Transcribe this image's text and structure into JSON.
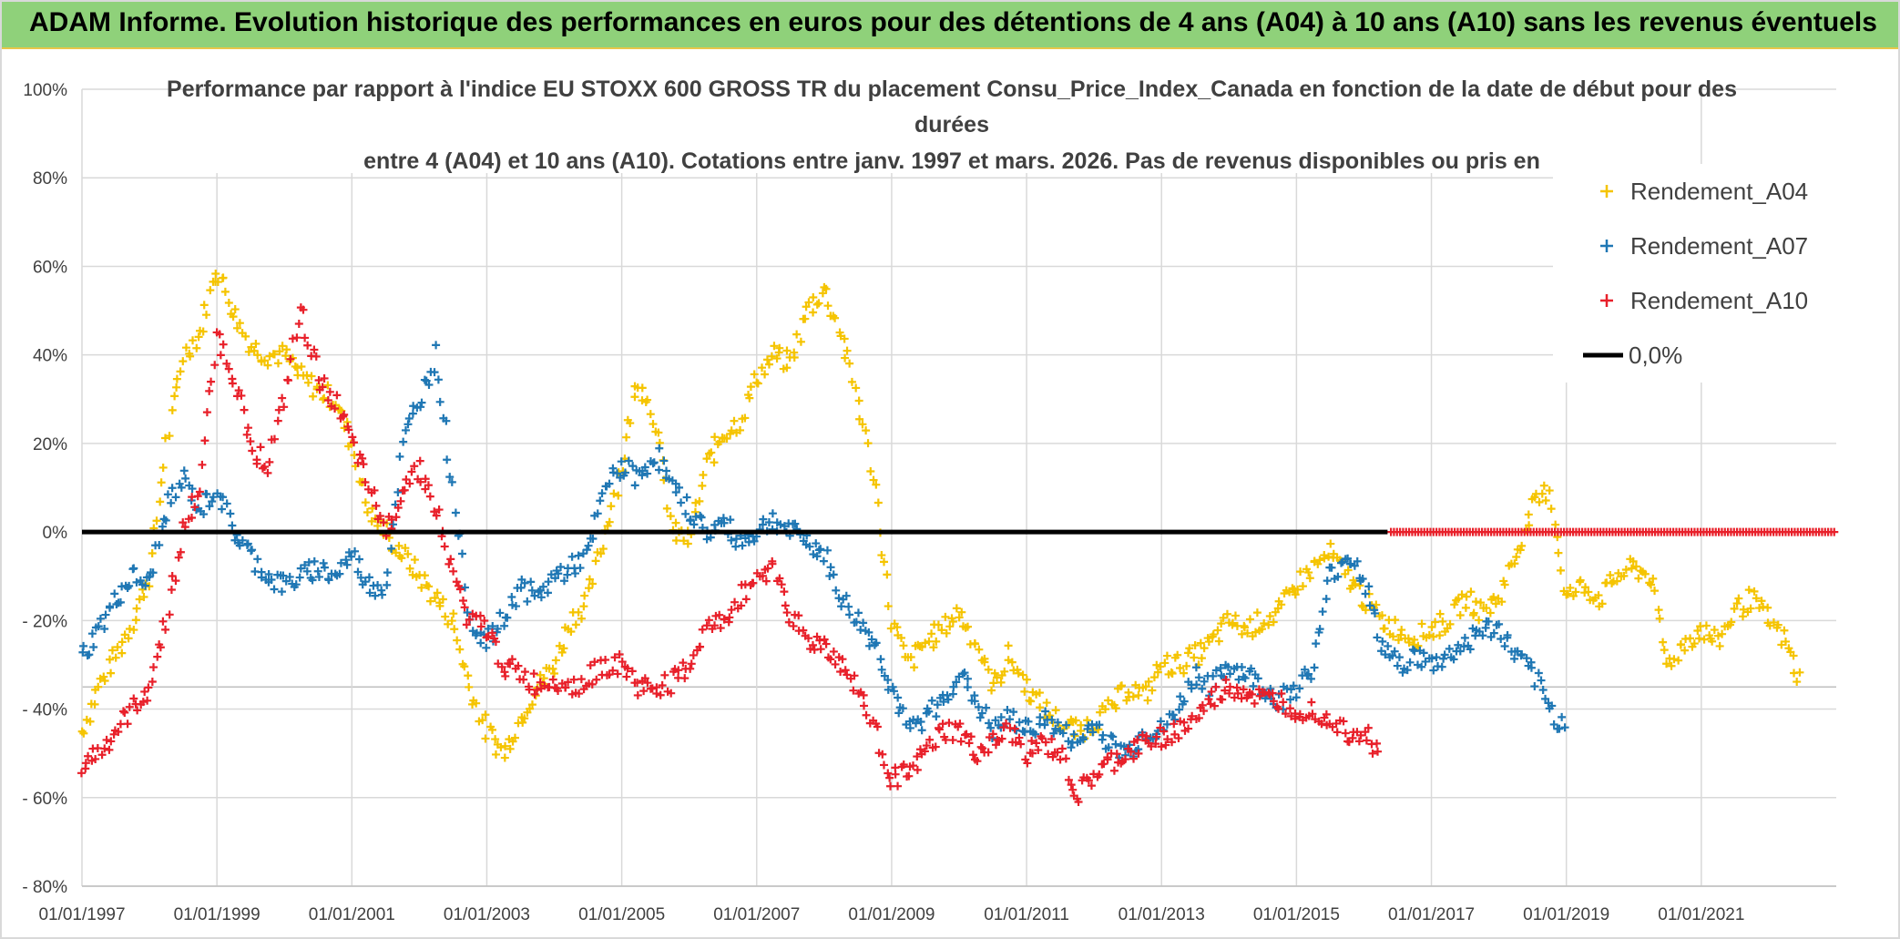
{
  "banner": {
    "title": "ADAM Informe. Evolution historique des performances en euros pour des détentions de 4 ans (A04) à 10 ans (A10) sans les revenus éventuels"
  },
  "chart_data": {
    "type": "scatter",
    "title_lines": [
      "Performance par rapport à l'indice EU STOXX 600 GROSS TR  du placement Consu_Price_Index_Canada en fonction de la date de début pour des",
      "durées",
      "entre 4 (A04) et 10 ans (A10). Cotations entre janv. 1997 et mars. 2026. Pas de revenus disponibles ou pris en"
    ],
    "x_tick_labels": [
      "01/01/1997",
      "01/01/1999",
      "01/01/2001",
      "01/01/2003",
      "01/01/2005",
      "01/01/2007",
      "01/01/2009",
      "01/01/2011",
      "01/01/2013",
      "01/01/2015",
      "01/01/2017",
      "01/01/2019",
      "01/01/2021"
    ],
    "y_tick_labels": [
      "100%",
      "80%",
      "60%",
      "40%",
      "20%",
      "0%",
      "- 20%",
      "- 40%",
      "- 60%",
      "- 80%"
    ],
    "xlim": [
      1997.0,
      2023.0
    ],
    "ylim": [
      -80,
      100
    ],
    "grid": true,
    "legend_position": "top-right",
    "reference_line": {
      "name": "0,0%",
      "value": 0,
      "color": "#000000"
    },
    "series": [
      {
        "name": "Rendement_A04",
        "color": "#f5c400",
        "x": [
          1997.0,
          1997.25,
          1997.5,
          1997.75,
          1998.0,
          1998.25,
          1998.5,
          1998.75,
          1999.0,
          1999.25,
          1999.5,
          1999.75,
          2000.0,
          2000.25,
          2000.5,
          2000.75,
          2001.0,
          2001.25,
          2001.5,
          2001.75,
          2002.0,
          2002.25,
          2002.5,
          2002.75,
          2003.0,
          2003.25,
          2003.5,
          2003.75,
          2004.0,
          2004.25,
          2004.5,
          2004.75,
          2005.0,
          2005.25,
          2005.5,
          2005.75,
          2006.0,
          2006.25,
          2006.5,
          2006.75,
          2007.0,
          2007.25,
          2007.5,
          2007.75,
          2008.0,
          2008.25,
          2008.5,
          2008.75,
          2009.0,
          2009.25,
          2009.5,
          2009.75,
          2010.0,
          2010.25,
          2010.5,
          2010.75,
          2011.0,
          2011.25,
          2011.5,
          2011.75,
          2012.0,
          2012.25,
          2012.5,
          2012.75,
          2013.0,
          2013.25,
          2013.5,
          2013.75,
          2014.0,
          2014.25,
          2014.5,
          2014.75,
          2015.0,
          2015.25,
          2015.5,
          2015.75,
          2016.0,
          2016.25,
          2016.5,
          2016.75,
          2017.0,
          2017.25,
          2017.5,
          2017.75,
          2018.0,
          2018.25,
          2018.5,
          2018.75,
          2019.0,
          2019.25,
          2019.5,
          2019.75,
          2020.0,
          2020.25,
          2020.5,
          2020.75,
          2021.0,
          2021.25,
          2021.5,
          2021.75,
          2022.0,
          2022.25,
          2022.5
        ],
        "y": [
          -45,
          -35,
          -28,
          -20,
          -10,
          20,
          40,
          45,
          60,
          50,
          42,
          40,
          40,
          35,
          32,
          30,
          20,
          5,
          0,
          -5,
          -10,
          -15,
          -20,
          -35,
          -45,
          -50,
          -42,
          -35,
          -30,
          -20,
          -15,
          0,
          15,
          35,
          25,
          0,
          -2,
          15,
          22,
          25,
          35,
          40,
          38,
          50,
          55,
          45,
          30,
          10,
          -20,
          -30,
          -25,
          -22,
          -18,
          -25,
          -35,
          -28,
          -35,
          -40,
          -43,
          -45,
          -43,
          -40,
          -35,
          -37,
          -30,
          -30,
          -28,
          -25,
          -20,
          -22,
          -20,
          -18,
          -12,
          -8,
          -5,
          -10,
          -15,
          -20,
          -22,
          -24,
          -22,
          -20,
          -15,
          -18,
          -15,
          -5,
          5,
          10,
          -15,
          -12,
          -15,
          -10,
          -8,
          -10,
          -30,
          -25,
          -22,
          -25,
          -18,
          -15,
          -20,
          -25,
          -35
        ]
      },
      {
        "name": "Rendement_A07",
        "color": "#1f77b4",
        "x": [
          1997.0,
          1997.25,
          1997.5,
          1997.75,
          1998.0,
          1998.25,
          1998.5,
          1998.75,
          1999.0,
          1999.25,
          1999.5,
          1999.75,
          2000.0,
          2000.25,
          2000.5,
          2000.75,
          2001.0,
          2001.25,
          2001.5,
          2001.75,
          2002.0,
          2002.25,
          2002.5,
          2002.75,
          2003.0,
          2003.25,
          2003.5,
          2003.75,
          2004.0,
          2004.25,
          2004.5,
          2004.75,
          2005.0,
          2005.25,
          2005.5,
          2005.75,
          2006.0,
          2006.25,
          2006.5,
          2006.75,
          2007.0,
          2007.25,
          2007.5,
          2007.75,
          2008.0,
          2008.25,
          2008.5,
          2008.75,
          2009.0,
          2009.25,
          2009.5,
          2009.75,
          2010.0,
          2010.25,
          2010.5,
          2010.75,
          2011.0,
          2011.25,
          2011.5,
          2011.75,
          2012.0,
          2012.25,
          2012.5,
          2012.75,
          2013.0,
          2013.25,
          2013.5,
          2013.75,
          2014.0,
          2014.25,
          2014.5,
          2014.75,
          2015.0,
          2015.25,
          2015.5,
          2015.75,
          2016.0,
          2016.25,
          2016.5,
          2016.75,
          2017.0,
          2017.25,
          2017.5,
          2017.75,
          2018.0,
          2018.25,
          2018.5,
          2018.75,
          2019.0
        ],
        "y": [
          -28,
          -22,
          -15,
          -10,
          -12,
          5,
          12,
          5,
          10,
          0,
          -5,
          -10,
          -12,
          -10,
          -8,
          -10,
          -5,
          -12,
          -12,
          20,
          30,
          40,
          10,
          -20,
          -25,
          -20,
          -12,
          -15,
          -10,
          -8,
          -5,
          10,
          15,
          12,
          18,
          10,
          5,
          0,
          2,
          -2,
          0,
          3,
          0,
          -2,
          -5,
          -15,
          -20,
          -25,
          -35,
          -45,
          -42,
          -38,
          -32,
          -38,
          -45,
          -42,
          -45,
          -42,
          -45,
          -48,
          -43,
          -48,
          -50,
          -45,
          -45,
          -40,
          -32,
          -35,
          -30,
          -32,
          -35,
          -38,
          -35,
          -30,
          -10,
          -5,
          -10,
          -25,
          -30,
          -28,
          -30,
          -28,
          -25,
          -22,
          -22,
          -28,
          -32,
          -40,
          -45
        ]
      },
      {
        "name": "Rendement_A10",
        "color": "#e8202a",
        "x": [
          1997.0,
          1997.25,
          1997.5,
          1997.75,
          1998.0,
          1998.25,
          1998.5,
          1998.75,
          1999.0,
          1999.25,
          1999.5,
          1999.75,
          2000.0,
          2000.25,
          2000.5,
          2000.75,
          2001.0,
          2001.25,
          2001.5,
          2001.75,
          2002.0,
          2002.25,
          2002.5,
          2002.75,
          2003.0,
          2003.25,
          2003.5,
          2003.75,
          2004.0,
          2004.25,
          2004.5,
          2004.75,
          2005.0,
          2005.25,
          2005.5,
          2005.75,
          2006.0,
          2006.25,
          2006.5,
          2006.75,
          2007.0,
          2007.25,
          2007.5,
          2007.75,
          2008.0,
          2008.25,
          2008.5,
          2008.75,
          2009.0,
          2009.25,
          2009.5,
          2009.75,
          2010.0,
          2010.25,
          2010.5,
          2010.75,
          2011.0,
          2011.25,
          2011.5,
          2011.75,
          2012.0,
          2012.25,
          2012.5,
          2012.75,
          2013.0,
          2013.25,
          2013.5,
          2013.75,
          2014.0,
          2014.25,
          2014.5,
          2014.75,
          2015.0,
          2015.25,
          2015.5,
          2015.75,
          2016.0,
          2016.25
        ],
        "y": [
          -52,
          -50,
          -45,
          -40,
          -35,
          -20,
          0,
          10,
          45,
          35,
          20,
          15,
          30,
          50,
          35,
          30,
          20,
          10,
          0,
          10,
          15,
          5,
          -10,
          -20,
          -22,
          -30,
          -32,
          -35,
          -33,
          -35,
          -33,
          -30,
          -30,
          -35,
          -35,
          -34,
          -30,
          -22,
          -20,
          -15,
          -10,
          -8,
          -18,
          -25,
          -25,
          -30,
          -35,
          -45,
          -55,
          -55,
          -50,
          -45,
          -45,
          -50,
          -48,
          -45,
          -50,
          -48,
          -50,
          -60,
          -55,
          -52,
          -50,
          -48,
          -46,
          -45,
          -42,
          -38,
          -35,
          -36,
          -38,
          -38,
          -40,
          -40,
          -42,
          -45,
          -45,
          -50
        ]
      }
    ],
    "flat_segment": {
      "series": "Rendement_A10",
      "x_start": 2016.4,
      "x_end": 2023.0,
      "y": 0
    }
  }
}
